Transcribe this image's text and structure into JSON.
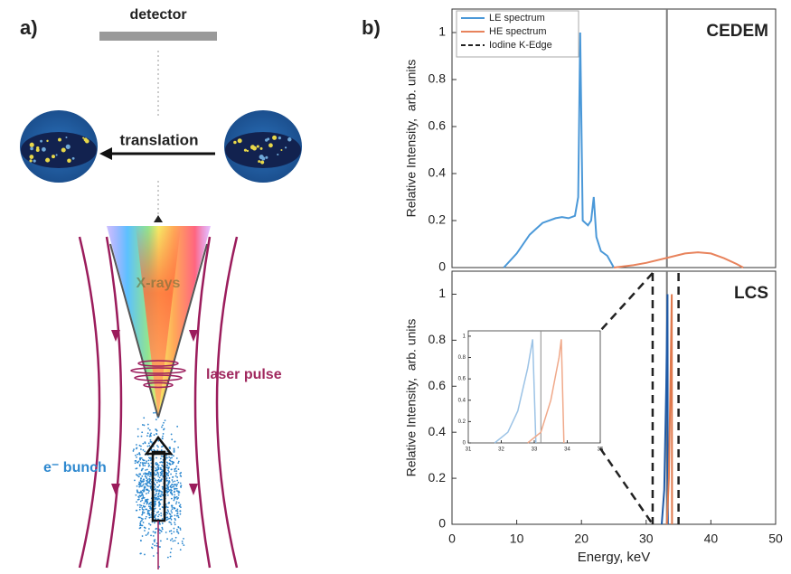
{
  "figure": {
    "panel_a": "a)",
    "panel_b": "b)"
  },
  "diagram": {
    "detector": "detector",
    "translation": "translation",
    "xrays": "X-rays",
    "laser": "laser pulse",
    "bunch": "e⁻ bunch"
  },
  "chart_data": [
    {
      "type": "line",
      "title": "CEDEM",
      "y_label": "Relative Intensity,  arb. units",
      "xlim": [
        0,
        50
      ],
      "ylim": [
        0,
        1.1
      ],
      "yticks": [
        0,
        0.2,
        0.4,
        0.6,
        0.8,
        1
      ],
      "series": [
        {
          "name": "LE spectrum",
          "color": "#4a98d8",
          "x": [
            8,
            10,
            12,
            14,
            16,
            17,
            18,
            19,
            19.5,
            19.8,
            20.2,
            21,
            21.5,
            21.9,
            22.3,
            23,
            24,
            25
          ],
          "values": [
            0,
            0.06,
            0.14,
            0.19,
            0.21,
            0.215,
            0.21,
            0.22,
            0.3,
            1.0,
            0.2,
            0.18,
            0.2,
            0.3,
            0.13,
            0.07,
            0.05,
            0
          ]
        },
        {
          "name": "HE spectrum",
          "color": "#e8835c",
          "x": [
            25,
            28,
            30,
            33,
            36,
            38,
            40,
            42,
            44,
            45
          ],
          "values": [
            0,
            0.01,
            0.02,
            0.04,
            0.06,
            0.065,
            0.06,
            0.04,
            0.015,
            0
          ]
        }
      ],
      "reference_line": {
        "name": "Iodine K-Edge",
        "x": 33.2,
        "color": "#7a7a7a"
      }
    },
    {
      "type": "line",
      "title": "LCS",
      "x_label": "Energy, keV",
      "y_label": "Relative Intensity,  arb. units",
      "xlim": [
        0,
        50
      ],
      "ylim": [
        0,
        1.1
      ],
      "xticks": [
        0,
        10,
        20,
        30,
        40,
        50
      ],
      "yticks": [
        0,
        0.2,
        0.4,
        0.6,
        0.8,
        1
      ],
      "series": [
        {
          "color": "#1f5aa6",
          "x": [
            32.4,
            32.8,
            33.1,
            33.3,
            33.35
          ],
          "values": [
            0,
            0.15,
            0.6,
            1.0,
            0
          ]
        },
        {
          "color": "#e07a4e",
          "x": [
            33.2,
            33.5,
            33.8,
            33.95,
            34.0
          ],
          "values": [
            0,
            0.2,
            0.7,
            1.0,
            0
          ]
        }
      ],
      "reference_line": {
        "x": 33.2,
        "color": "#7a7a7a"
      },
      "zoom_range": [
        31,
        35
      ],
      "inset": {
        "type": "line",
        "xlim": [
          31,
          35
        ],
        "ylim": [
          0,
          1.05
        ],
        "xticks": [
          31,
          32,
          33,
          34,
          35
        ],
        "yticks": [
          0,
          0.2,
          0.4,
          0.6,
          0.8,
          1
        ],
        "series": [
          {
            "color": "#9cc3e6",
            "x": [
              31.8,
              32.2,
              32.5,
              32.8,
              32.95,
              33.05
            ],
            "values": [
              0,
              0.1,
              0.3,
              0.7,
              0.97,
              0
            ]
          },
          {
            "color": "#f0a98a",
            "x": [
              32.8,
              33.2,
              33.5,
              33.75,
              33.82,
              33.9
            ],
            "values": [
              0,
              0.1,
              0.4,
              0.8,
              0.97,
              0
            ]
          }
        ],
        "reference_line": {
          "x": 33.2,
          "color": "#8a8a8a"
        }
      }
    }
  ]
}
